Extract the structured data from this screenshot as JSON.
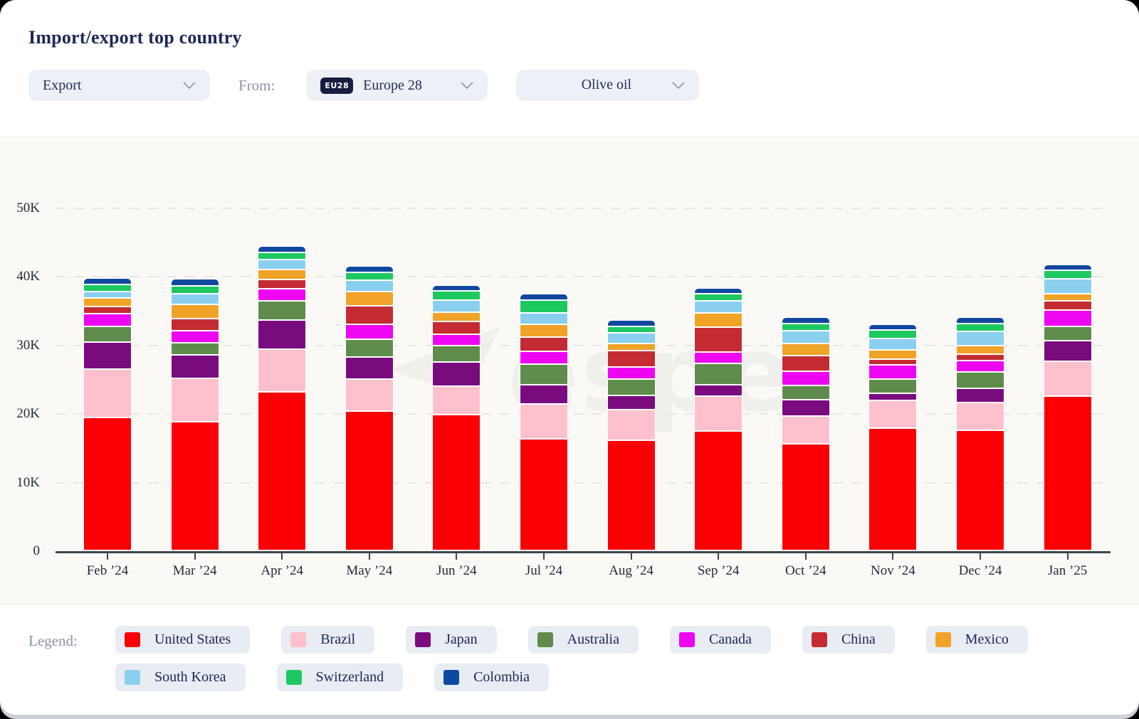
{
  "header": {
    "title": "Import/export top country",
    "flow_select": {
      "value": "Export"
    },
    "from_label": "From:",
    "origin_select": {
      "badge": "EU28",
      "value": "Europe 28"
    },
    "product_select": {
      "value": "Olive oil"
    }
  },
  "watermark": {
    "text": "espe"
  },
  "legend": {
    "label": "Legend:"
  },
  "chart_data": {
    "type": "bar",
    "stacked": true,
    "title": "Import/export top country",
    "xlabel": "",
    "ylabel": "",
    "ylim": [
      0,
      52000
    ],
    "grid": "dashed-horizontal",
    "legend_position": "bottom",
    "yticks": [
      {
        "label": "0",
        "value": 0
      },
      {
        "label": "10K",
        "value": 10000
      },
      {
        "label": "20K",
        "value": 20000
      },
      {
        "label": "30K",
        "value": 30000
      },
      {
        "label": "40K",
        "value": 40000
      },
      {
        "label": "50K",
        "value": 50000
      }
    ],
    "categories": [
      "Feb ’24",
      "Mar ’24",
      "Apr ’24",
      "May ’24",
      "Jun ’24",
      "Jul ’24",
      "Aug ’24",
      "Sep ’24",
      "Oct ’24",
      "Nov ’24",
      "Dec ’24",
      "Jan ’25"
    ],
    "series": [
      {
        "name": "United States",
        "color": "#fa0005",
        "values": [
          19400,
          18800,
          23100,
          20300,
          19800,
          16300,
          16100,
          17400,
          15600,
          17800,
          17500,
          22500
        ]
      },
      {
        "name": "Brazil",
        "color": "#ffc0cd",
        "values": [
          7100,
          6300,
          6300,
          4700,
          4200,
          5100,
          4400,
          5100,
          4000,
          4100,
          4100,
          5100
        ]
      },
      {
        "name": "Japan",
        "color": "#7a0b7f",
        "values": [
          3900,
          3400,
          4200,
          3200,
          3500,
          2800,
          2100,
          1700,
          2400,
          1000,
          2100,
          3000
        ]
      },
      {
        "name": "Australia",
        "color": "#5f8c4c",
        "values": [
          2300,
          1800,
          2800,
          2600,
          2400,
          3000,
          2400,
          3100,
          2100,
          2100,
          2400,
          2100
        ]
      },
      {
        "name": "Canada",
        "color": "#ee05f2",
        "values": [
          1900,
          1800,
          1800,
          2200,
          1600,
          1900,
          1800,
          1600,
          2100,
          2100,
          1600,
          2400
        ]
      },
      {
        "name": "China",
        "color": "#c42b33",
        "values": [
          1000,
          1700,
          1300,
          2700,
          1900,
          2000,
          2400,
          3700,
          2200,
          800,
          900,
          1300
        ]
      },
      {
        "name": "Mexico",
        "color": "#f0a327",
        "values": [
          1200,
          2100,
          1500,
          2100,
          1400,
          1900,
          1000,
          2000,
          1800,
          1400,
          1300,
          1100
        ]
      },
      {
        "name": "South Korea",
        "color": "#8bcfef",
        "values": [
          1000,
          1500,
          1400,
          1600,
          1700,
          1700,
          1600,
          1800,
          1900,
          1600,
          2100,
          2100
        ]
      },
      {
        "name": "Switzerland",
        "color": "#1ec860",
        "values": [
          1000,
          1200,
          1100,
          1200,
          1400,
          1800,
          900,
          1000,
          1000,
          1300,
          1100,
          1300
        ]
      },
      {
        "name": "Colombia",
        "color": "#10489f",
        "values": [
          1000,
          1000,
          900,
          900,
          800,
          900,
          900,
          900,
          900,
          800,
          900,
          800
        ]
      }
    ]
  }
}
